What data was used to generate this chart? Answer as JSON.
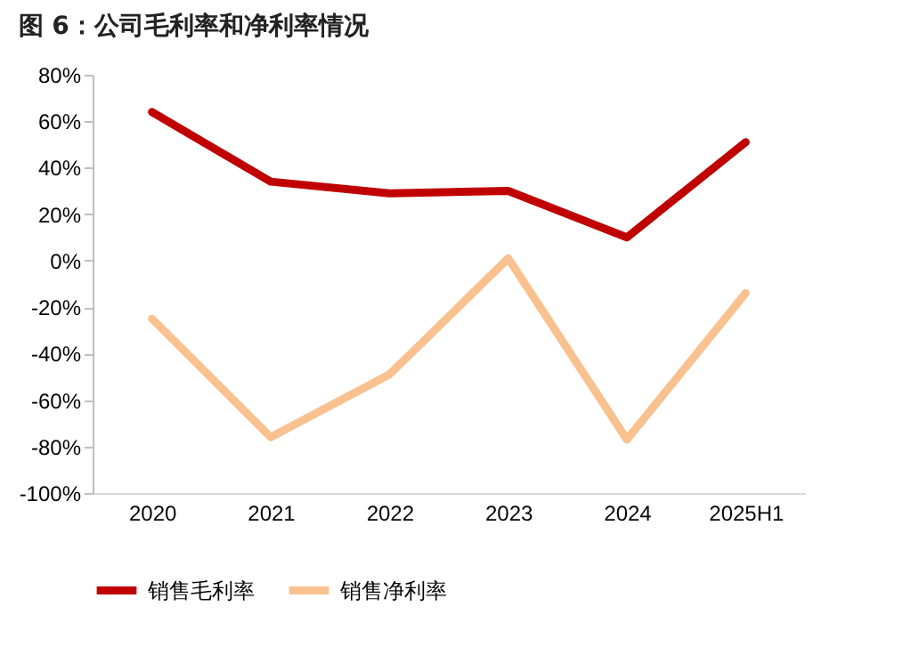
{
  "chart_data": {
    "type": "line",
    "title": "图 6：公司毛利率和净利率情况",
    "categories": [
      "2020",
      "2021",
      "2022",
      "2023",
      "2024",
      "2025H1"
    ],
    "series": [
      {
        "name": "销售毛利率",
        "color": "#c00000",
        "values": [
          64,
          34,
          29,
          30,
          10,
          51
        ]
      },
      {
        "name": "销售净利率",
        "color": "#f9c18f",
        "values": [
          -25,
          -76,
          -49,
          1,
          -77,
          -14
        ]
      }
    ],
    "ylim": [
      -100,
      80
    ],
    "yticks": [
      {
        "value": -100,
        "label": "-100%"
      },
      {
        "value": -80,
        "label": "-80%"
      },
      {
        "value": -60,
        "label": "-60%"
      },
      {
        "value": -40,
        "label": "-40%"
      },
      {
        "value": -20,
        "label": "-20%"
      },
      {
        "value": 0,
        "label": "0%"
      },
      {
        "value": 20,
        "label": "20%"
      },
      {
        "value": 40,
        "label": "40%"
      },
      {
        "value": 60,
        "label": "60%"
      },
      {
        "value": 80,
        "label": "80%"
      }
    ],
    "legend": "bottom",
    "grid": false,
    "marker": "none",
    "line_style": "solid"
  }
}
